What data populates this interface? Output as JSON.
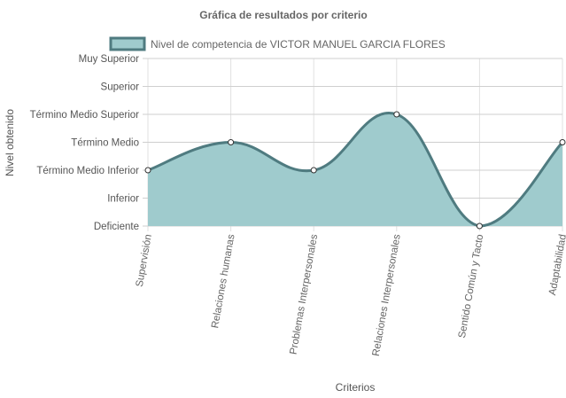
{
  "chart_data": {
    "type": "line",
    "title": "Gráfica de resultados por criterio",
    "xlabel": "Criterios",
    "ylabel": "Nivel obtenido",
    "y_levels": [
      "Deficiente",
      "Inferior",
      "Término Medio Inferior",
      "Término Medio",
      "Término Medio Superior",
      "Superior",
      "Muy Superior"
    ],
    "categories": [
      "Supervisión",
      "Relaciones humanas",
      "Problemas Interpersonales",
      "Relaciones Interpersonales",
      "Sentido Común y Tacto",
      "Adaptabilidad"
    ],
    "series": [
      {
        "name": "Nivel de competencia de VICTOR MANUEL GARCIA FLORES",
        "values": [
          2,
          3,
          2,
          4,
          0,
          3
        ],
        "color": "#4f7b80",
        "fill": "#9fcbcd"
      }
    ],
    "ylim": [
      0,
      6
    ],
    "fill": true,
    "grid": true,
    "legend_position": "top"
  }
}
